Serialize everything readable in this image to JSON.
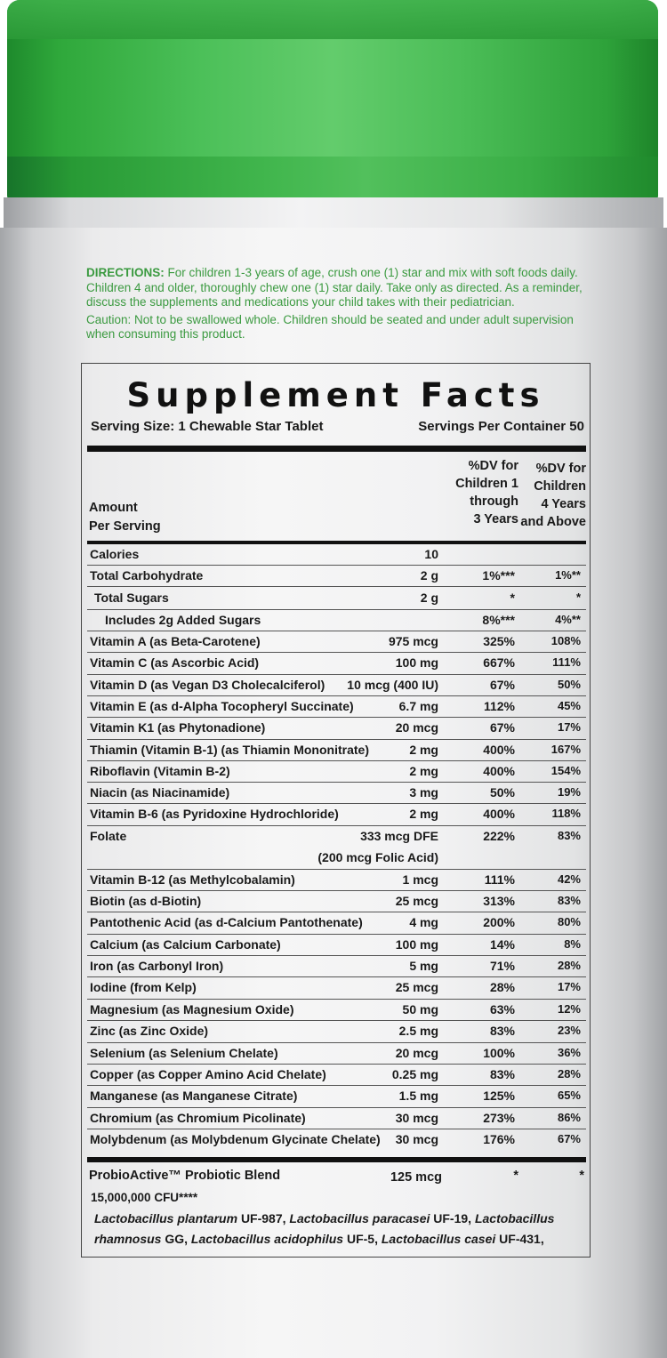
{
  "directions": {
    "label": "DIRECTIONS:",
    "text": "For children 1-3 years of age, crush one (1) star and mix with soft foods daily. Children 4 and older, thoroughly chew one (1) star daily. Take only as directed. As a reminder, discuss the supplements and medications your child takes with their pediatrician.",
    "caution": "Caution: Not to be swallowed whole. Children should be seated and under adult supervision when consuming this product."
  },
  "facts": {
    "title": "Supplement Facts",
    "serving_size": "Serving Size: 1 Chewable Star Tablet",
    "servings_per_container": "Servings Per Container 50",
    "amount_header": [
      "Amount",
      "Per Serving"
    ],
    "dv1_header": [
      "%DV for",
      "Children 1",
      "through",
      "3 Years"
    ],
    "dv2_header": [
      "%DV for",
      "Children",
      "4 Years",
      "and Above"
    ],
    "rows": [
      {
        "name": "Calories",
        "amount": "10",
        "dv1": "",
        "dv2": ""
      },
      {
        "name": "Total Carbohydrate",
        "amount": "2 g",
        "dv1": "1%***",
        "dv2": "1%**"
      },
      {
        "name": "Total Sugars",
        "amount": "2 g",
        "dv1": "*",
        "dv2": "*"
      },
      {
        "name": "Includes 2g Added Sugars",
        "amount": "",
        "dv1": "8%***",
        "dv2": "4%**"
      },
      {
        "name": "Vitamin A (as Beta-Carotene)",
        "amount": "975 mcg",
        "dv1": "325%",
        "dv2": "108%"
      },
      {
        "name": "Vitamin C (as Ascorbic Acid)",
        "amount": "100 mg",
        "dv1": "667%",
        "dv2": "111%"
      },
      {
        "name": "Vitamin D (as Vegan D3 Cholecalciferol)",
        "amount": "10 mcg (400 IU)",
        "dv1": "67%",
        "dv2": "50%"
      },
      {
        "name": "Vitamin E (as d-Alpha Tocopheryl Succinate)",
        "amount": "6.7 mg",
        "dv1": "112%",
        "dv2": "45%"
      },
      {
        "name": "Vitamin K1 (as Phytonadione)",
        "amount": "20 mcg",
        "dv1": "67%",
        "dv2": "17%"
      },
      {
        "name": "Thiamin (Vitamin B-1) (as Thiamin Mononitrate)",
        "amount": "2 mg",
        "dv1": "400%",
        "dv2": "167%"
      },
      {
        "name": "Riboflavin (Vitamin B-2)",
        "amount": "2 mg",
        "dv1": "400%",
        "dv2": "154%"
      },
      {
        "name": "Niacin (as Niacinamide)",
        "amount": "3 mg",
        "dv1": "50%",
        "dv2": "19%"
      },
      {
        "name": "Vitamin B-6 (as Pyridoxine Hydrochloride)",
        "amount": "2 mg",
        "dv1": "400%",
        "dv2": "118%"
      },
      {
        "name": "Folate",
        "amount": "333 mcg DFE",
        "amount2": "(200 mcg Folic Acid)",
        "dv1": "222%",
        "dv2": "83%"
      },
      {
        "name": "Vitamin B-12 (as Methylcobalamin)",
        "amount": "1 mcg",
        "dv1": "111%",
        "dv2": "42%"
      },
      {
        "name": "Biotin (as d-Biotin)",
        "amount": "25 mcg",
        "dv1": "313%",
        "dv2": "83%"
      },
      {
        "name": "Pantothenic Acid (as d-Calcium Pantothenate)",
        "amount": "4 mg",
        "dv1": "200%",
        "dv2": "80%"
      },
      {
        "name": "Calcium (as Calcium Carbonate)",
        "amount": "100 mg",
        "dv1": "14%",
        "dv2": "8%"
      },
      {
        "name": "Iron (as Carbonyl Iron)",
        "amount": "5 mg",
        "dv1": "71%",
        "dv2": "28%"
      },
      {
        "name": "Iodine (from Kelp)",
        "amount": "25 mcg",
        "dv1": "28%",
        "dv2": "17%"
      },
      {
        "name": "Magnesium (as Magnesium Oxide)",
        "amount": "50 mg",
        "dv1": "63%",
        "dv2": "12%"
      },
      {
        "name": "Zinc (as Zinc Oxide)",
        "amount": "2.5 mg",
        "dv1": "83%",
        "dv2": "23%"
      },
      {
        "name": "Selenium (as Selenium Chelate)",
        "amount": "20 mcg",
        "dv1": "100%",
        "dv2": "36%"
      },
      {
        "name": "Copper (as Copper Amino Acid Chelate)",
        "amount": "0.25 mg",
        "dv1": "83%",
        "dv2": "28%"
      },
      {
        "name": "Manganese (as Manganese Citrate)",
        "amount": "1.5 mg",
        "dv1": "125%",
        "dv2": "65%"
      },
      {
        "name": "Chromium (as Chromium Picolinate)",
        "amount": "30 mcg",
        "dv1": "273%",
        "dv2": "86%"
      },
      {
        "name": "Molybdenum (as Molybdenum Glycinate Chelate)",
        "amount": "30 mcg",
        "dv1": "176%",
        "dv2": "67%"
      }
    ],
    "blend": {
      "name": "ProbioActive™ Probiotic Blend",
      "amount": "125 mcg",
      "dv1": "*",
      "dv2": "*",
      "cfu": "15,000,000 CFU****",
      "species": [
        {
          "name": "Lactobacillus plantarum",
          "strain": "UF-987,"
        },
        {
          "name": "Lactobacillus paracasei",
          "strain": "UF-19,"
        },
        {
          "name": "Lactobacillus rhamnosus",
          "strain": "GG,"
        },
        {
          "name": "Lactobacillus acidophilus",
          "strain": "UF-5,"
        },
        {
          "name": "Lactobacillus casei",
          "strain": "UF-431,"
        }
      ]
    }
  }
}
